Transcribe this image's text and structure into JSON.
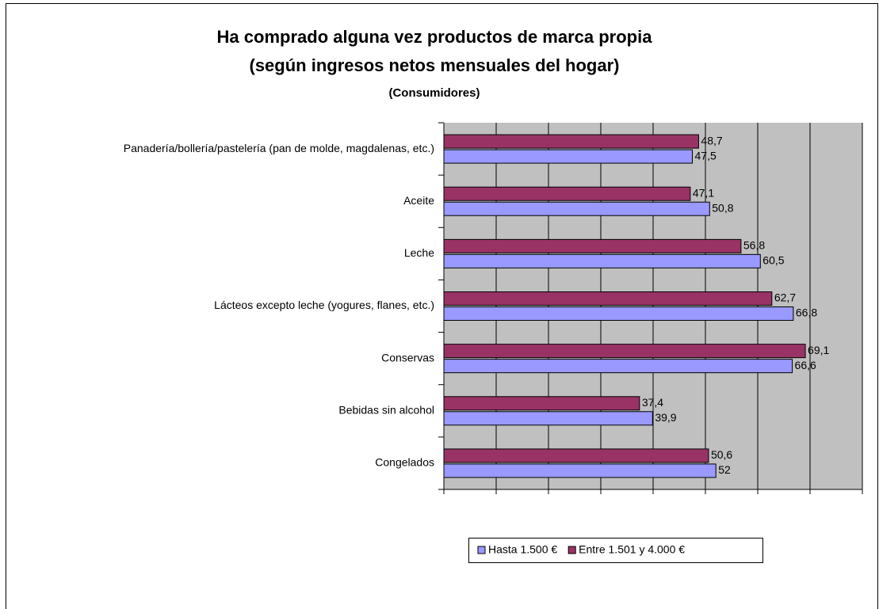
{
  "chart_data": {
    "type": "bar",
    "orientation": "horizontal",
    "title": "Ha comprado alguna vez productos de marca propia",
    "subtitle": "(según ingresos netos mensuales del hogar)",
    "note": "(Consumidores)",
    "categories": [
      "Panadería/bollería/pastelería (pan de molde, magdalenas, etc.)",
      "Aceite",
      "Leche",
      "Lácteos excepto leche (yogures, flanes, etc.)",
      "Conservas",
      "Bebidas sin alcohol",
      "Congelados"
    ],
    "series": [
      {
        "name": "Hasta 1.500 €",
        "color": "#9999ff",
        "values": [
          47.5,
          50.8,
          60.5,
          66.8,
          66.6,
          39.9,
          52
        ],
        "value_labels": [
          "47,5",
          "50,8",
          "60,5",
          "66,8",
          "66,6",
          "39,9",
          "52"
        ]
      },
      {
        "name": "Entre 1.501 y 4.000 €",
        "color": "#993366",
        "values": [
          48.7,
          47.1,
          56.8,
          62.7,
          69.1,
          37.4,
          50.6
        ],
        "value_labels": [
          "48,7",
          "47,1",
          "56,8",
          "62,7",
          "69,1",
          "37,4",
          "50,6"
        ]
      }
    ],
    "xlim": [
      0,
      80
    ],
    "xticks": [
      0,
      10,
      20,
      30,
      40,
      50,
      60,
      70,
      80
    ],
    "grid": true,
    "legend": "bottom"
  }
}
